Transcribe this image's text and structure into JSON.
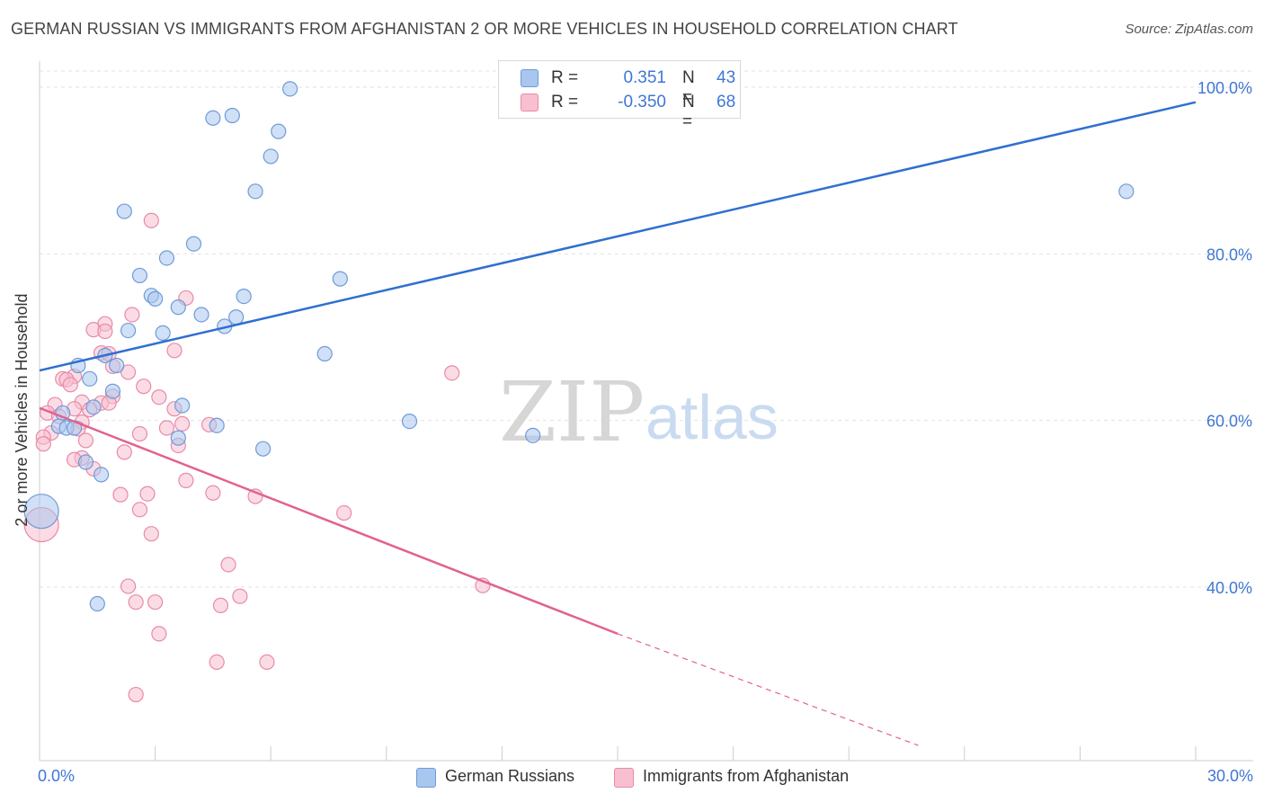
{
  "title": "GERMAN RUSSIAN VS IMMIGRANTS FROM AFGHANISTAN 2 OR MORE VEHICLES IN HOUSEHOLD CORRELATION CHART",
  "source": "Source: ZipAtlas.com",
  "watermark": {
    "zip": "ZIP",
    "atlas": "atlas"
  },
  "legend": {
    "rows": [
      {
        "r_label": "R =",
        "r_value": "0.351",
        "n_label": "N =",
        "n_value": "43"
      },
      {
        "r_label": "R =",
        "r_value": "-0.350",
        "n_label": "N =",
        "n_value": "68"
      }
    ]
  },
  "colors": {
    "blue_fill": "#a9c6ee",
    "blue_stroke": "#6f9bd8",
    "blue_line": "#2f6fd0",
    "pink_fill": "#f7bfd0",
    "pink_stroke": "#e88aa8",
    "pink_line": "#e2628f",
    "axis_label": "#3f77d4",
    "grid": "#e2e2e2"
  },
  "chart_data": {
    "type": "scatter",
    "title": "GERMAN RUSSIAN VS IMMIGRANTS FROM AFGHANISTAN 2 OR MORE VEHICLES IN HOUSEHOLD CORRELATION CHART",
    "xlabel": "",
    "ylabel": "2 or more Vehicles in Household",
    "xlim": [
      0,
      30
    ],
    "ylim": [
      20,
      102
    ],
    "x_tick_labels": [
      "0.0%",
      "30.0%"
    ],
    "y_ticks": [
      40,
      60,
      80,
      100
    ],
    "y_tick_labels": [
      "40.0%",
      "60.0%",
      "80.0%",
      "100.0%"
    ],
    "grid": true,
    "legend_position": "bottom",
    "series": [
      {
        "name": "German Russians",
        "color": "#a9c6ee",
        "trend": {
          "x": [
            0,
            30
          ],
          "y": [
            66.0,
            98.2
          ],
          "dashed_beyond": null
        },
        "points": [
          {
            "x": 6.5,
            "y": 99.8
          },
          {
            "x": 4.5,
            "y": 96.3
          },
          {
            "x": 5.0,
            "y": 96.6
          },
          {
            "x": 6.2,
            "y": 94.7
          },
          {
            "x": 6.0,
            "y": 91.7
          },
          {
            "x": 5.6,
            "y": 87.5
          },
          {
            "x": 28.2,
            "y": 87.5
          },
          {
            "x": 2.2,
            "y": 85.1
          },
          {
            "x": 4.0,
            "y": 81.2
          },
          {
            "x": 3.3,
            "y": 79.5
          },
          {
            "x": 2.6,
            "y": 77.4
          },
          {
            "x": 7.8,
            "y": 77.0
          },
          {
            "x": 2.9,
            "y": 75.0
          },
          {
            "x": 3.0,
            "y": 74.6
          },
          {
            "x": 5.3,
            "y": 74.9
          },
          {
            "x": 3.6,
            "y": 73.6
          },
          {
            "x": 4.2,
            "y": 72.7
          },
          {
            "x": 5.1,
            "y": 72.4
          },
          {
            "x": 4.8,
            "y": 71.3
          },
          {
            "x": 2.3,
            "y": 70.8
          },
          {
            "x": 3.2,
            "y": 70.5
          },
          {
            "x": 1.7,
            "y": 67.8
          },
          {
            "x": 7.4,
            "y": 68.0
          },
          {
            "x": 1.0,
            "y": 66.6
          },
          {
            "x": 2.0,
            "y": 66.6
          },
          {
            "x": 1.3,
            "y": 65.0
          },
          {
            "x": 1.9,
            "y": 63.5
          },
          {
            "x": 3.7,
            "y": 61.8
          },
          {
            "x": 1.4,
            "y": 61.6
          },
          {
            "x": 0.6,
            "y": 60.9
          },
          {
            "x": 0.5,
            "y": 59.3
          },
          {
            "x": 0.7,
            "y": 59.1
          },
          {
            "x": 0.9,
            "y": 59.1
          },
          {
            "x": 9.6,
            "y": 59.9
          },
          {
            "x": 4.6,
            "y": 59.4
          },
          {
            "x": 12.8,
            "y": 58.2
          },
          {
            "x": 3.6,
            "y": 57.9
          },
          {
            "x": 5.8,
            "y": 56.6
          },
          {
            "x": 1.2,
            "y": 55.0
          },
          {
            "x": 1.6,
            "y": 53.5
          },
          {
            "x": 0.05,
            "y": 49.1,
            "large": true
          },
          {
            "x": 1.5,
            "y": 38.0
          }
        ]
      },
      {
        "name": "Immigrants from Afghanistan",
        "color": "#f7bfd0",
        "trend": {
          "x": [
            0,
            15
          ],
          "y": [
            61.5,
            34.4
          ],
          "dashed_to": {
            "x": 22.8,
            "y": 21.0
          }
        },
        "points": [
          {
            "x": 2.9,
            "y": 84.0
          },
          {
            "x": 3.8,
            "y": 74.7
          },
          {
            "x": 2.4,
            "y": 72.7
          },
          {
            "x": 1.7,
            "y": 71.6
          },
          {
            "x": 1.4,
            "y": 70.9
          },
          {
            "x": 1.7,
            "y": 70.7
          },
          {
            "x": 3.5,
            "y": 68.4
          },
          {
            "x": 1.6,
            "y": 68.1
          },
          {
            "x": 1.8,
            "y": 68.0
          },
          {
            "x": 1.9,
            "y": 66.5
          },
          {
            "x": 2.3,
            "y": 65.8
          },
          {
            "x": 10.7,
            "y": 65.7
          },
          {
            "x": 0.9,
            "y": 65.3
          },
          {
            "x": 0.6,
            "y": 65.0
          },
          {
            "x": 0.7,
            "y": 64.9
          },
          {
            "x": 0.8,
            "y": 64.3
          },
          {
            "x": 2.7,
            "y": 64.1
          },
          {
            "x": 1.9,
            "y": 62.9
          },
          {
            "x": 3.1,
            "y": 62.8
          },
          {
            "x": 1.1,
            "y": 62.2
          },
          {
            "x": 1.6,
            "y": 62.1
          },
          {
            "x": 1.8,
            "y": 62.1
          },
          {
            "x": 0.4,
            "y": 61.9
          },
          {
            "x": 3.5,
            "y": 61.4
          },
          {
            "x": 0.9,
            "y": 61.4
          },
          {
            "x": 1.3,
            "y": 61.3
          },
          {
            "x": 0.2,
            "y": 60.9
          },
          {
            "x": 0.5,
            "y": 60.5
          },
          {
            "x": 1.1,
            "y": 59.8
          },
          {
            "x": 3.7,
            "y": 59.6
          },
          {
            "x": 4.4,
            "y": 59.5
          },
          {
            "x": 3.3,
            "y": 59.1
          },
          {
            "x": 1.0,
            "y": 59.0
          },
          {
            "x": 0.3,
            "y": 58.5
          },
          {
            "x": 2.6,
            "y": 58.4
          },
          {
            "x": 0.1,
            "y": 58.0
          },
          {
            "x": 1.2,
            "y": 57.6
          },
          {
            "x": 0.1,
            "y": 57.2
          },
          {
            "x": 3.6,
            "y": 57.0
          },
          {
            "x": 2.2,
            "y": 56.2
          },
          {
            "x": 1.1,
            "y": 55.5
          },
          {
            "x": 0.9,
            "y": 55.3
          },
          {
            "x": 1.4,
            "y": 54.2
          },
          {
            "x": 3.8,
            "y": 52.8
          },
          {
            "x": 2.1,
            "y": 51.1
          },
          {
            "x": 2.8,
            "y": 51.2
          },
          {
            "x": 4.5,
            "y": 51.3
          },
          {
            "x": 5.6,
            "y": 50.9
          },
          {
            "x": 2.6,
            "y": 49.3
          },
          {
            "x": 7.9,
            "y": 48.9
          },
          {
            "x": 0.05,
            "y": 47.5,
            "large": true
          },
          {
            "x": 2.9,
            "y": 46.4
          },
          {
            "x": 4.9,
            "y": 42.7
          },
          {
            "x": 11.5,
            "y": 40.2
          },
          {
            "x": 2.3,
            "y": 40.1
          },
          {
            "x": 5.2,
            "y": 38.9
          },
          {
            "x": 2.5,
            "y": 38.2
          },
          {
            "x": 3.0,
            "y": 38.2
          },
          {
            "x": 4.7,
            "y": 37.8
          },
          {
            "x": 3.1,
            "y": 34.4
          },
          {
            "x": 4.6,
            "y": 31.0
          },
          {
            "x": 5.9,
            "y": 31.0
          },
          {
            "x": 2.5,
            "y": 27.1
          }
        ]
      }
    ]
  },
  "axes": {
    "x_tick_labels": [
      "0.0%",
      "30.0%"
    ],
    "y_tick_labels": [
      "40.0%",
      "60.0%",
      "80.0%",
      "100.0%"
    ],
    "ylabel": "2 or more Vehicles in Household"
  },
  "bottom_legend": {
    "items": [
      {
        "label": "German Russians"
      },
      {
        "label": "Immigrants from Afghanistan"
      }
    ]
  }
}
